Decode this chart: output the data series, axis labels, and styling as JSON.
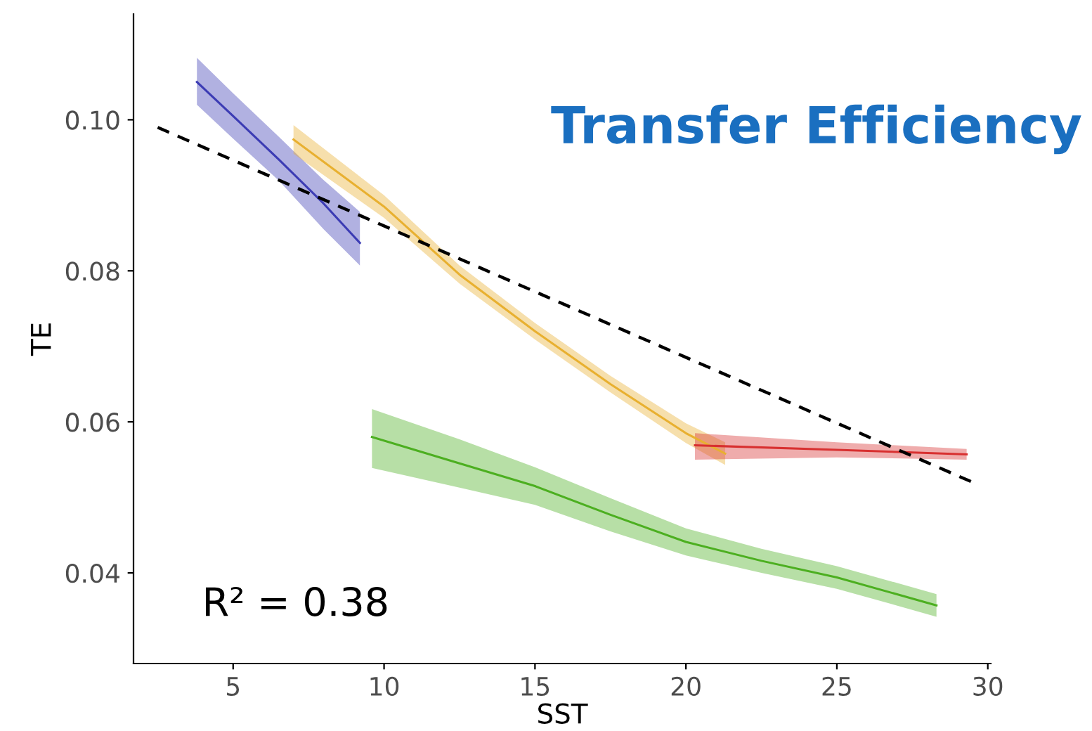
{
  "chart_data": {
    "type": "line",
    "title": "Transfer Efficiency",
    "xlabel": "SST",
    "ylabel": "TE",
    "annotations": [
      "R² = 0.38"
    ],
    "xlim": [
      1.7,
      30.1
    ],
    "ylim": [
      0.028,
      0.114
    ],
    "xticks": [
      5,
      10,
      15,
      20,
      25,
      30
    ],
    "yticks": [
      {
        "value": 0.04,
        "label": "0.04"
      },
      {
        "value": 0.06,
        "label": "0.06"
      },
      {
        "value": 0.08,
        "label": "0.08"
      },
      {
        "value": 0.1,
        "label": "0.10"
      }
    ],
    "grid": false,
    "legend": false,
    "marker": "none",
    "line_style": "solid",
    "series": [
      {
        "color": "#3c3cb4",
        "x": [
          3.8,
          5,
          6.5,
          8,
          9.2
        ],
        "values": [
          0.105,
          0.1005,
          0.0948,
          0.0889,
          0.0837
        ],
        "lower": [
          0.102,
          0.0975,
          0.092,
          0.0855,
          0.0807
        ],
        "upper": [
          0.1082,
          0.1035,
          0.0978,
          0.092,
          0.0878
        ]
      },
      {
        "color": "#e8b030",
        "x": [
          7,
          10,
          12.5,
          15,
          17.5,
          20,
          21.3
        ],
        "values": [
          0.0974,
          0.0885,
          0.0795,
          0.072,
          0.065,
          0.0585,
          0.0558
        ],
        "lower": [
          0.0955,
          0.087,
          0.0783,
          0.0709,
          0.0639,
          0.0572,
          0.0543
        ],
        "upper": [
          0.0993,
          0.09,
          0.0807,
          0.0731,
          0.0661,
          0.0598,
          0.0573
        ]
      },
      {
        "color": "#d83030",
        "x": [
          20.3,
          25,
          29.3
        ],
        "values": [
          0.0569,
          0.0563,
          0.0557
        ],
        "lower": [
          0.055,
          0.0553,
          0.055
        ],
        "upper": [
          0.0585,
          0.0573,
          0.0564
        ]
      },
      {
        "color": "#4caf20",
        "x": [
          9.6,
          12.5,
          15,
          17.5,
          20,
          22.5,
          25,
          28.3
        ],
        "values": [
          0.058,
          0.0545,
          0.0515,
          0.0477,
          0.0441,
          0.0416,
          0.0394,
          0.0357
        ],
        "lower": [
          0.0539,
          0.0513,
          0.049,
          0.0455,
          0.0423,
          0.04,
          0.0379,
          0.0342
        ],
        "upper": [
          0.0617,
          0.0577,
          0.054,
          0.0499,
          0.0459,
          0.0432,
          0.0409,
          0.0372
        ]
      },
      {
        "color": "#000000",
        "line_style": "dashed",
        "x": [
          2.5,
          29.5
        ],
        "values": [
          0.099,
          0.052
        ]
      }
    ]
  }
}
